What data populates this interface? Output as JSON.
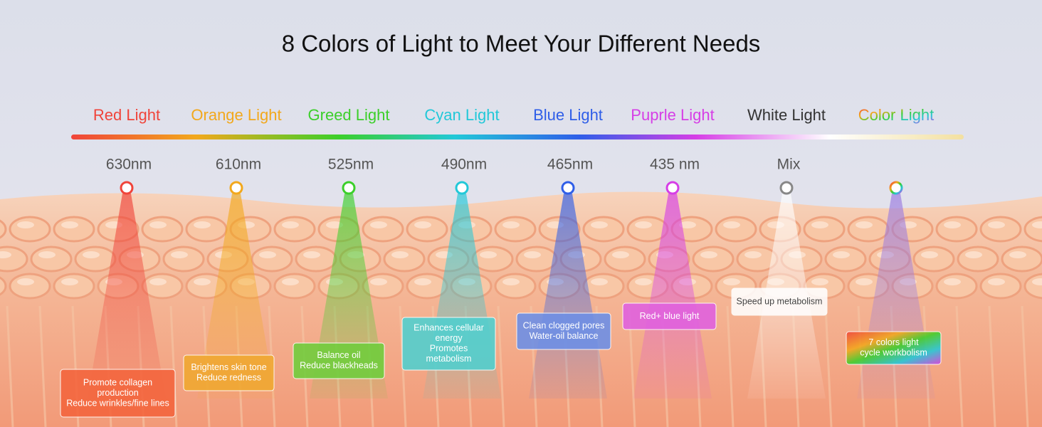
{
  "title": "8 Colors of Light to Meet Your Different Needs",
  "lights": [
    {
      "name": "Red Light",
      "wavelength": "630nm",
      "color": "#f0443a",
      "box": "#f4643c",
      "description": [
        "Promote collagen",
        "production",
        "Reduce wrinkles/fine lines"
      ]
    },
    {
      "name": "Orange Light",
      "wavelength": "610nm",
      "color": "#f2a81c",
      "box": "#f0a830",
      "description": [
        "Brightens skin tone",
        "Reduce redness"
      ]
    },
    {
      "name": "Greed Light",
      "wavelength": "525nm",
      "color": "#3ccf2a",
      "box": "#6fce3c",
      "description": [
        "Balance oil",
        "Reduce blackheads"
      ]
    },
    {
      "name": "Cyan Light",
      "wavelength": "490nm",
      "color": "#22c8d8",
      "box": "#4fd0d0",
      "description": [
        "Enhances cellular",
        "energy",
        "Promotes",
        "metabolism"
      ]
    },
    {
      "name": "Blue Light",
      "wavelength": "465nm",
      "color": "#2f5ee8",
      "box": "#6b8fe8",
      "description": [
        "Clean clogged pores",
        "Water-oil balance"
      ]
    },
    {
      "name": "Puprle Light",
      "wavelength": "435 nm",
      "color": "#d63ee6",
      "box": "#e060e0",
      "description": [
        "Red+ blue light"
      ]
    },
    {
      "name": "White Light",
      "wavelength": "Mix",
      "color": "#333333",
      "box": "#ffffff",
      "description": [
        "Speed up metabolism"
      ]
    },
    {
      "name": "Color Light",
      "wavelength": "",
      "color": "multi",
      "box": "multi",
      "description": [
        "7 colors light",
        "cycle workbolism"
      ]
    }
  ]
}
